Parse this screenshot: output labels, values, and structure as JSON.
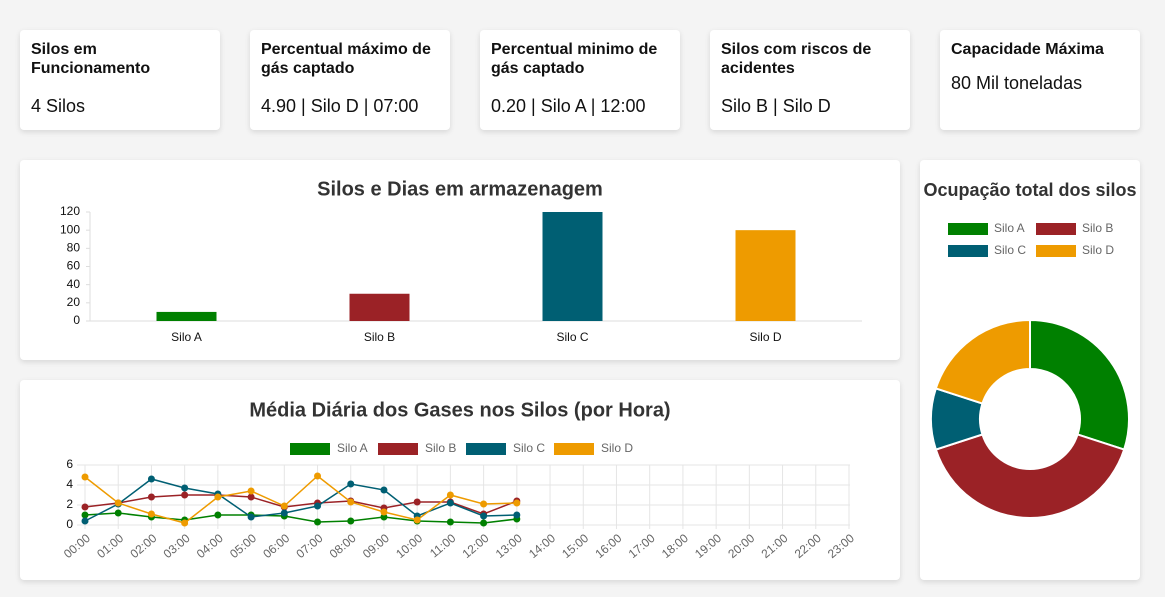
{
  "cards": [
    {
      "title": "Silos em Funcionamento",
      "value": "4 Silos"
    },
    {
      "title": "Percentual máximo de gás captado",
      "value": "4.90 | Silo D | 07:00"
    },
    {
      "title": "Percentual minimo de gás captado",
      "value": "0.20 | Silo A | 12:00"
    },
    {
      "title": "Silos com riscos de acidentes",
      "value": "Silo B | Silo D"
    },
    {
      "title": "Capacidade Máxima",
      "value": "80 Mil toneladas"
    }
  ],
  "chart_data": [
    {
      "type": "bar",
      "title": "Silos e Dias em armazenagem",
      "categories": [
        "Silo A",
        "Silo B",
        "Silo C",
        "Silo D"
      ],
      "values": [
        10,
        30,
        120,
        100
      ],
      "colors": [
        "#008000",
        "#9b2226",
        "#005f73",
        "#ee9b00"
      ],
      "ylim": [
        0,
        120
      ],
      "yticks": [
        0,
        20,
        40,
        60,
        80,
        100,
        120
      ],
      "grid": false
    },
    {
      "type": "line",
      "title": "Média Diária dos Gases nos Silos (por Hora)",
      "categories": [
        "00:00",
        "01:00",
        "02:00",
        "03:00",
        "04:00",
        "05:00",
        "06:00",
        "07:00",
        "08:00",
        "09:00",
        "10:00",
        "11:00",
        "12:00",
        "13:00",
        "14:00",
        "15:00",
        "16:00",
        "17:00",
        "18:00",
        "19:00",
        "20:00",
        "21:00",
        "22:00",
        "23:00"
      ],
      "series": [
        {
          "name": "Silo A",
          "color": "#008000",
          "values": [
            1.0,
            1.2,
            0.8,
            0.5,
            1.0,
            1.0,
            0.9,
            0.3,
            0.4,
            0.8,
            0.4,
            0.3,
            0.2,
            0.6,
            null,
            null,
            null,
            null,
            null,
            null,
            null,
            null,
            null,
            null
          ]
        },
        {
          "name": "Silo B",
          "color": "#9b2226",
          "values": [
            1.8,
            2.2,
            2.8,
            3.0,
            3.0,
            2.8,
            1.8,
            2.2,
            2.4,
            1.7,
            2.3,
            2.3,
            1.1,
            2.4,
            null,
            null,
            null,
            null,
            null,
            null,
            null,
            null,
            null,
            null
          ]
        },
        {
          "name": "Silo C",
          "color": "#005f73",
          "values": [
            0.4,
            2.1,
            4.6,
            3.7,
            3.1,
            0.8,
            1.2,
            1.9,
            4.1,
            3.5,
            0.9,
            2.2,
            0.9,
            1.0,
            null,
            null,
            null,
            null,
            null,
            null,
            null,
            null,
            null,
            null
          ]
        },
        {
          "name": "Silo D",
          "color": "#ee9b00",
          "values": [
            4.8,
            2.2,
            1.1,
            0.2,
            2.8,
            3.4,
            1.9,
            4.9,
            2.3,
            1.3,
            0.5,
            3.0,
            2.1,
            2.2,
            null,
            null,
            null,
            null,
            null,
            null,
            null,
            null,
            null,
            null
          ]
        }
      ],
      "ylim": [
        0,
        6
      ],
      "yticks": [
        0,
        2,
        4,
        6
      ],
      "grid": true
    },
    {
      "type": "doughnut",
      "title": "Ocupação total dos silos",
      "categories": [
        "Silo A",
        "Silo B",
        "Silo C",
        "Silo D"
      ],
      "values": [
        30,
        40,
        10,
        20
      ],
      "colors": [
        "#008000",
        "#9b2226",
        "#005f73",
        "#ee9b00"
      ]
    }
  ]
}
